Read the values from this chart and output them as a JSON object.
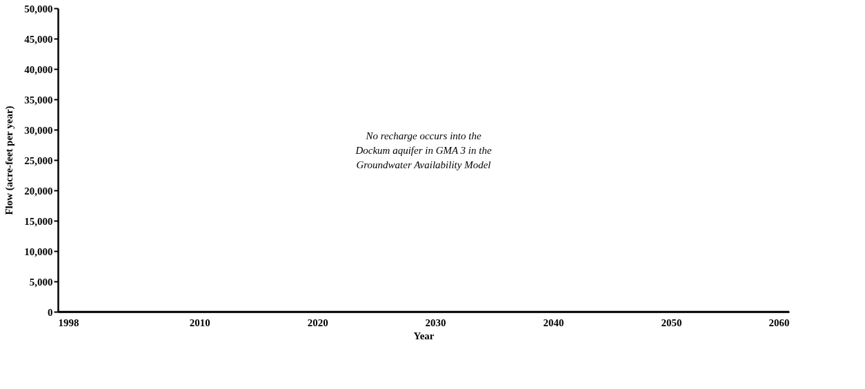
{
  "chart_data": {
    "type": "line",
    "xlabel": "Year",
    "ylabel": "Flow (acre-feet per year)",
    "x": [
      1998,
      2060
    ],
    "series": [
      {
        "color": "#000000",
        "values": [
          0,
          0
        ]
      }
    ],
    "xlim": [
      1998,
      2060
    ],
    "xticks": [
      1998,
      2010,
      2020,
      2030,
      2040,
      2050,
      2060
    ],
    "ylim": [
      0,
      50000
    ],
    "yticks": [
      {
        "value": 0,
        "label": "0"
      },
      {
        "value": 5000,
        "label": "5,000"
      },
      {
        "value": 10000,
        "label": "10,000"
      },
      {
        "value": 15000,
        "label": "15,000"
      },
      {
        "value": 20000,
        "label": "20,000"
      },
      {
        "value": 25000,
        "label": "25,000"
      },
      {
        "value": 30000,
        "label": "30,000"
      },
      {
        "value": 35000,
        "label": "35,000"
      },
      {
        "value": 40000,
        "label": "40,000"
      },
      {
        "value": 45000,
        "label": "45,000"
      },
      {
        "value": 50000,
        "label": "50,000"
      }
    ],
    "annotations": [
      "No recharge occurs into the Dockum aquifer in GMA 3 in the Groundwater Availability Model"
    ],
    "grid": false,
    "marker": "none",
    "line_style": "solid"
  }
}
